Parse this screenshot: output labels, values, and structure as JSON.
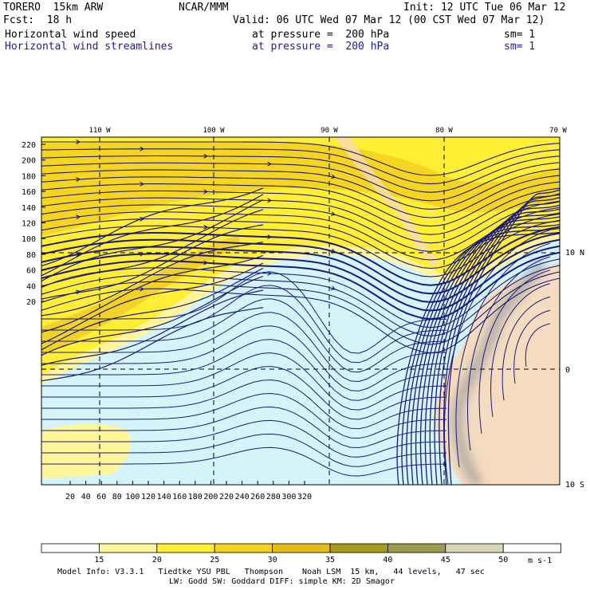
{
  "header": {
    "model": "TORERO  15km ARW",
    "center": "NCAR/MMM",
    "init": "Init: 12 UTC Tue 06 Mar 12",
    "fcst": "Fcst:  18 h",
    "valid": "Valid: 06 UTC Wed 07 Mar 12 (00 CST Wed 07 Mar 12)",
    "field1": "Horizontal wind speed",
    "field1_level": "at pressure =  200 hPa",
    "field1_sm": "sm= 1",
    "field2": "Horizontal wind streamlines",
    "field2_level": "at pressure =  200 hPa",
    "field2_sm": "sm= 1",
    "field2_color": "#1a1aa0"
  },
  "map": {
    "top_lon_labels": [
      "110 W",
      "100 W",
      "90 W",
      "80 W",
      "70 W"
    ],
    "right_lat_labels": [
      "10 N",
      "0",
      "10 S"
    ],
    "left_grid_labels": [
      "220",
      "200",
      "180",
      "160",
      "140",
      "120",
      "100",
      "80",
      "60",
      "40",
      "20"
    ],
    "bottom_grid_labels": [
      "20",
      "40",
      "60",
      "80",
      "100",
      "120",
      "140",
      "160",
      "180",
      "200",
      "220",
      "240",
      "260",
      "280",
      "300",
      "320"
    ],
    "streamline_color": "#1a1a7a",
    "land_color": "#f5dcc0"
  },
  "colorbar": {
    "labels": [
      "15",
      "20",
      "25",
      "30",
      "35",
      "40",
      "45",
      "50"
    ],
    "unit": "m s-1",
    "colors": [
      "#ffffff",
      "#fff59a",
      "#ffee33",
      "#f5d21e",
      "#e6bc1a",
      "#a89a1a",
      "#9c9a4e",
      "#d8d4bc",
      "#ffffff"
    ]
  },
  "footer": {
    "line1": "Model Info: V3.3.1   Tiedtke YSU PBL   Thompson    Noah LSM  15 km,   44 levels,   47 sec",
    "line2": "LW: Godd SW: Goddard DIFF: simple KM: 2D Smagor"
  }
}
